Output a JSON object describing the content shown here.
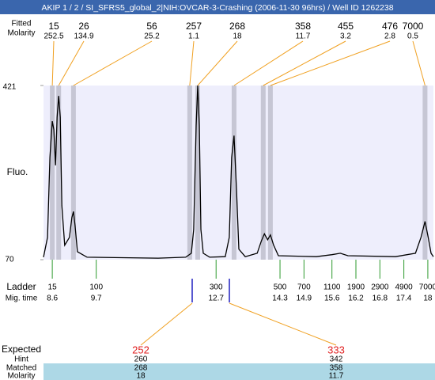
{
  "title": "AKIP 1 / 2 / SI_SFRS5_global_2|NIH:OVCAR-3-Crashing (2006-11-30 96hrs) / Well ID 1262238",
  "fitted_label": "Fitted",
  "molarity_label": "Molarity",
  "chart_data": {
    "type": "line",
    "y_label": "Fluo.",
    "color": "#000000",
    "xlim": [
      8.38,
      18.14
    ],
    "ylim": [
      70,
      421
    ],
    "yticks": [
      70,
      421
    ],
    "x": [
      8.38,
      8.48,
      8.54,
      8.6,
      8.64,
      8.68,
      8.72,
      8.76,
      8.8,
      8.84,
      8.91,
      9.03,
      9.09,
      9.13,
      9.17,
      9.23,
      9.47,
      11.25,
      11.94,
      12.08,
      12.14,
      12.2,
      12.24,
      12.28,
      12.32,
      12.38,
      12.54,
      12.93,
      13.03,
      13.09,
      13.15,
      13.21,
      13.27,
      13.43,
      13.73,
      13.83,
      13.91,
      13.99,
      14.06,
      14.14,
      14.26,
      15.21,
      15.6,
      15.81,
      16.0,
      17.19,
      17.69,
      17.83,
      17.93,
      18.01,
      18.08,
      18.14
    ],
    "y": [
      75,
      115,
      276,
      349,
      332,
      260,
      357,
      400,
      357,
      179,
      99,
      115,
      155,
      167,
      139,
      86,
      75,
      73,
      75,
      83,
      131,
      340,
      421,
      340,
      131,
      83,
      75,
      76,
      115,
      276,
      320,
      212,
      91,
      76,
      83,
      107,
      122,
      110,
      120,
      99,
      78,
      76,
      80,
      83,
      78,
      76,
      83,
      115,
      147,
      115,
      83,
      76
    ],
    "peaks": [
      {
        "size": 15,
        "molarity": 252.5,
        "time": 8.6
      },
      {
        "size": 26,
        "molarity": 134.9,
        "time": 8.76
      },
      {
        "size": 56,
        "molarity": 25.2,
        "time": 9.13
      },
      {
        "size": 257,
        "molarity": 1.1,
        "time": 12.04
      },
      {
        "size": 268,
        "molarity": 18,
        "time": 12.24
      },
      {
        "size": 358,
        "molarity": 11.7,
        "time": 13.15
      },
      {
        "size": 455,
        "molarity": 3.2,
        "time": 13.88
      },
      {
        "size": 476,
        "molarity": 2.8,
        "time": 14.06
      },
      {
        "size": 7000,
        "molarity": 0.5,
        "time": 17.93
      }
    ],
    "ladder": {
      "label": "Ladder",
      "time_label": "Mig. time",
      "sizes": [
        15,
        100,
        300,
        500,
        700,
        1100,
        1900,
        2900,
        4900,
        7000
      ],
      "times": [
        8.6,
        9.7,
        12.7,
        14.3,
        14.9,
        15.6,
        16.2,
        16.8,
        17.4,
        18
      ]
    }
  },
  "expected": {
    "label": "Expected",
    "values": [
      252,
      333
    ],
    "hint_label": "Hint",
    "hint": [
      260,
      342
    ],
    "matched_label": "Matched",
    "matched": [
      268,
      358
    ],
    "molarity_label": "Molarity",
    "molarity": [
      18,
      11.7
    ]
  }
}
